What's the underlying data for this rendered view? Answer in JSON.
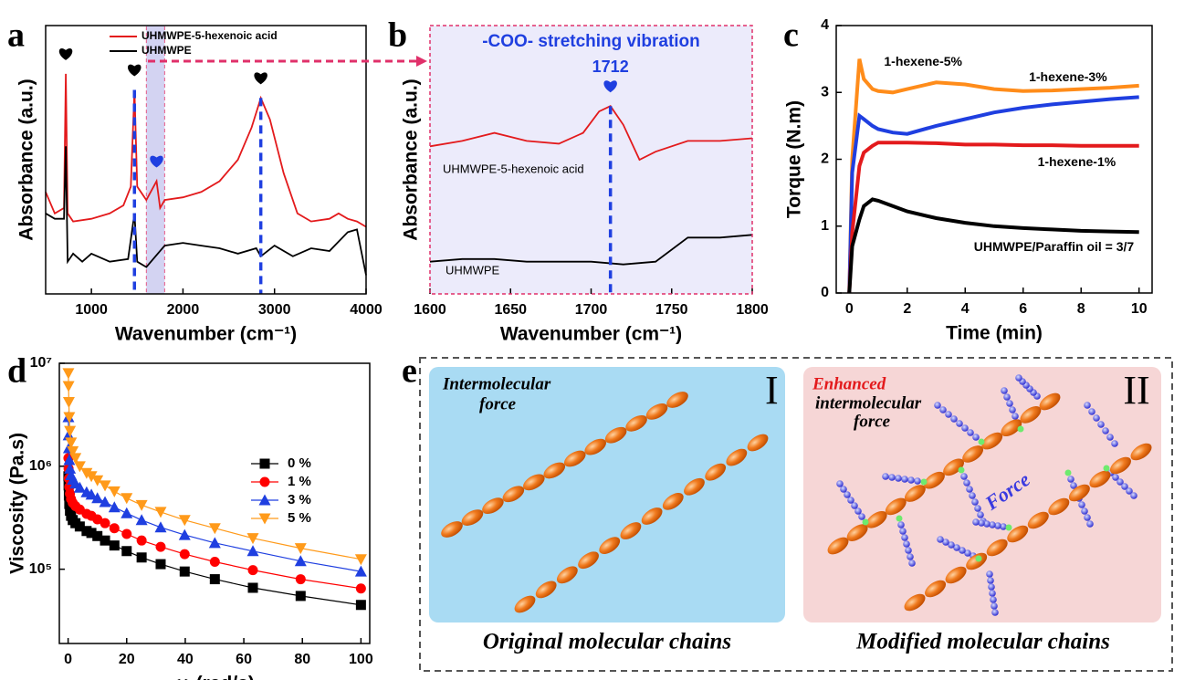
{
  "chart_data": [
    {
      "type": "line",
      "panel": "a",
      "xlabel": "Wavenumber (cm⁻¹)",
      "ylabel": "Absorbance (a.u.)",
      "xlim": [
        500,
        4000
      ],
      "xticks": [
        1000,
        2000,
        3000,
        4000
      ],
      "ylim": [
        0,
        1
      ],
      "series": [
        {
          "name": "UHMWPE-5-hexenoic acid",
          "color": "#e31a1c",
          "x": [
            500,
            600,
            700,
            720,
            740,
            800,
            1000,
            1200,
            1350,
            1430,
            1470,
            1500,
            1600,
            1712,
            1750,
            1800,
            2000,
            2200,
            2400,
            2600,
            2750,
            2850,
            2950,
            3100,
            3250,
            3400,
            3600,
            3700,
            3800,
            3900,
            4000
          ],
          "values": [
            0.38,
            0.3,
            0.32,
            0.82,
            0.3,
            0.27,
            0.28,
            0.3,
            0.33,
            0.4,
            0.76,
            0.4,
            0.35,
            0.42,
            0.32,
            0.35,
            0.36,
            0.38,
            0.42,
            0.5,
            0.62,
            0.73,
            0.65,
            0.45,
            0.3,
            0.27,
            0.28,
            0.3,
            0.28,
            0.27,
            0.25
          ]
        },
        {
          "name": "UHMWPE",
          "color": "#000000",
          "x": [
            500,
            600,
            700,
            720,
            740,
            800,
            900,
            1000,
            1200,
            1400,
            1470,
            1500,
            1600,
            1800,
            2000,
            2200,
            2400,
            2600,
            2800,
            2850,
            3000,
            3200,
            3400,
            3600,
            3800,
            3900,
            4000
          ],
          "values": [
            0.3,
            0.28,
            0.28,
            0.55,
            0.12,
            0.15,
            0.12,
            0.15,
            0.12,
            0.13,
            0.3,
            0.12,
            0.1,
            0.18,
            0.19,
            0.18,
            0.17,
            0.15,
            0.17,
            0.14,
            0.18,
            0.14,
            0.17,
            0.16,
            0.23,
            0.24,
            0.07
          ]
        }
      ],
      "peaks": [
        {
          "x": 720,
          "color": "#000000"
        },
        {
          "x": 1470,
          "color": "#000000",
          "dashed": true
        },
        {
          "x": 1712,
          "color": "#1f3fe0"
        },
        {
          "x": 2850,
          "color": "#000000",
          "dashed": true
        }
      ],
      "highlight": [
        1600,
        1800
      ],
      "legend": "upper left"
    },
    {
      "type": "line",
      "panel": "b",
      "xlabel": "Wavenumber (cm⁻¹)",
      "ylabel": "Absorbance (a.u.)",
      "xlim": [
        1600,
        1800
      ],
      "xticks": [
        1600,
        1650,
        1700,
        1750,
        1800
      ],
      "ylim": [
        0,
        1
      ],
      "annotations": [
        "-COO- stretching vibration",
        "1712"
      ],
      "series": [
        {
          "name": "UHMWPE-5-hexenoic acid",
          "color": "#e31a1c",
          "x": [
            1600,
            1620,
            1640,
            1660,
            1680,
            1695,
            1705,
            1712,
            1720,
            1730,
            1740,
            1760,
            1780,
            1800
          ],
          "values": [
            0.55,
            0.57,
            0.6,
            0.57,
            0.56,
            0.6,
            0.68,
            0.7,
            0.63,
            0.5,
            0.53,
            0.57,
            0.57,
            0.58
          ]
        },
        {
          "name": "UHMWPE",
          "color": "#000000",
          "x": [
            1600,
            1620,
            1640,
            1660,
            1700,
            1720,
            1740,
            1760,
            1780,
            1800
          ],
          "values": [
            0.12,
            0.13,
            0.13,
            0.12,
            0.12,
            0.11,
            0.12,
            0.21,
            0.21,
            0.22
          ]
        }
      ],
      "peaks": [
        {
          "x": 1712,
          "color": "#1f3fe0",
          "dashed": true
        }
      ]
    },
    {
      "type": "line",
      "panel": "c",
      "xlabel": "Time (min)",
      "ylabel": "Torque (N.m)",
      "xlim": [
        -0.45,
        10.45
      ],
      "xticks": [
        0,
        2,
        4,
        6,
        8,
        10
      ],
      "ylim": [
        0,
        4
      ],
      "yticks": [
        0,
        1,
        2,
        3,
        4
      ],
      "series": [
        {
          "name": "1-hexene-5%",
          "color": "#ff8c1a",
          "x": [
            0,
            0.1,
            0.35,
            0.5,
            0.8,
            1,
            1.5,
            2,
            3,
            4,
            5,
            6,
            7,
            8,
            9,
            10
          ],
          "values": [
            0,
            2.0,
            3.5,
            3.2,
            3.05,
            3.02,
            3.0,
            3.05,
            3.15,
            3.12,
            3.05,
            3.02,
            3.03,
            3.05,
            3.07,
            3.1
          ]
        },
        {
          "name": "1-hexene-3%",
          "color": "#1f3fe0",
          "x": [
            0,
            0.1,
            0.35,
            0.5,
            0.8,
            1,
            1.5,
            2,
            3,
            4,
            5,
            6,
            7,
            8,
            9,
            10
          ],
          "values": [
            0,
            1.8,
            2.65,
            2.6,
            2.5,
            2.45,
            2.4,
            2.38,
            2.5,
            2.6,
            2.7,
            2.77,
            2.82,
            2.86,
            2.9,
            2.93
          ]
        },
        {
          "name": "1-hexene-1%",
          "color": "#e31a1c",
          "x": [
            0,
            0.1,
            0.35,
            0.5,
            0.8,
            1,
            1.5,
            2,
            3,
            4,
            5,
            6,
            7,
            8,
            9,
            10
          ],
          "values": [
            0,
            0.9,
            1.9,
            2.1,
            2.2,
            2.25,
            2.25,
            2.25,
            2.24,
            2.22,
            2.22,
            2.21,
            2.21,
            2.2,
            2.2,
            2.2
          ]
        },
        {
          "name": "UHMWPE/Paraffin oil = 3/7",
          "color": "#000000",
          "x": [
            0,
            0.1,
            0.35,
            0.5,
            0.8,
            1,
            1.5,
            2,
            3,
            4,
            5,
            6,
            7,
            8,
            9,
            10
          ],
          "values": [
            0,
            0.7,
            1.1,
            1.3,
            1.4,
            1.38,
            1.3,
            1.22,
            1.12,
            1.05,
            1.0,
            0.97,
            0.95,
            0.93,
            0.92,
            0.91
          ]
        }
      ]
    },
    {
      "type": "line",
      "panel": "d",
      "xlabel": "ω  (rad/s)",
      "ylabel": "Viscosity  (Pa.s)",
      "log_y": true,
      "xlim": [
        -3,
        103
      ],
      "xticks": [
        0,
        20,
        40,
        60,
        80,
        100
      ],
      "ylim": [
        19000,
        10000000
      ],
      "yticks": [
        {
          "value": 100000,
          "label": "10⁵"
        },
        {
          "value": 1000000,
          "label": "10⁶"
        },
        {
          "value": 10000000,
          "label": "10⁷"
        }
      ],
      "x": [
        0.1,
        0.158,
        0.251,
        0.398,
        0.631,
        1,
        1.58,
        2.51,
        3.98,
        6.31,
        7.94,
        10,
        12.6,
        15.8,
        20,
        25.1,
        31.6,
        39.8,
        50.1,
        63.1,
        79.4,
        100
      ],
      "series": [
        {
          "name": "0 %",
          "color": "#000000",
          "marker": "square",
          "values": [
            800000,
            650000,
            520000,
            430000,
            370000,
            330000,
            300000,
            280000,
            260000,
            235000,
            225000,
            210000,
            190000,
            170000,
            150000,
            130000,
            112000,
            95000,
            80000,
            66000,
            55000,
            45000
          ]
        },
        {
          "name": "1 %",
          "color": "#ff0000",
          "marker": "circle",
          "values": [
            1200000,
            950000,
            760000,
            630000,
            540000,
            480000,
            440000,
            410000,
            380000,
            345000,
            330000,
            305000,
            280000,
            250000,
            220000,
            190000,
            165000,
            140000,
            118000,
            98000,
            80000,
            65000
          ]
        },
        {
          "name": "3 %",
          "color": "#1f3fe0",
          "marker": "triangle-up",
          "values": [
            3000000,
            2000000,
            1500000,
            1150000,
            950000,
            820000,
            740000,
            680000,
            620000,
            560000,
            530000,
            490000,
            450000,
            400000,
            350000,
            300000,
            255000,
            215000,
            180000,
            150000,
            120000,
            95000
          ]
        },
        {
          "name": "5 %",
          "color": "#ff9a1a",
          "marker": "triangle-down",
          "values": [
            8000000,
            6000000,
            4200000,
            3000000,
            2200000,
            1700000,
            1400000,
            1200000,
            1000000,
            860000,
            800000,
            730000,
            650000,
            570000,
            490000,
            420000,
            360000,
            300000,
            250000,
            200000,
            160000,
            125000
          ]
        }
      ],
      "legend": "center right"
    }
  ],
  "diagram": {
    "panel": "e",
    "left": {
      "label": "I",
      "note": [
        "Intermolecular",
        "force"
      ],
      "caption": "Original molecular chains"
    },
    "right": {
      "label": "II",
      "note": [
        "Enhanced",
        "intermolecular",
        "force"
      ],
      "center": "Force",
      "caption": "Modified molecular chains"
    }
  }
}
